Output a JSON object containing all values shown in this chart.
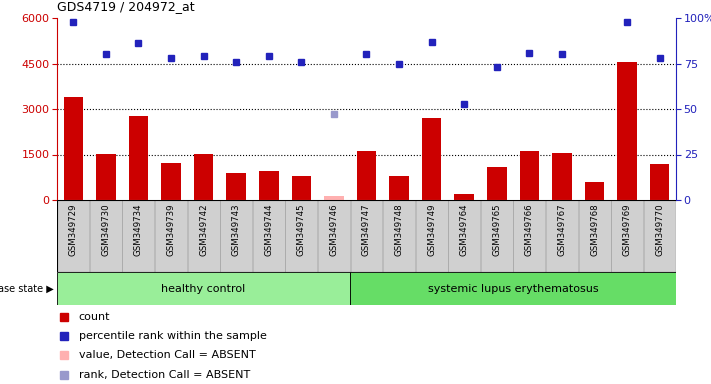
{
  "title": "GDS4719 / 204972_at",
  "samples": [
    "GSM349729",
    "GSM349730",
    "GSM349734",
    "GSM349739",
    "GSM349742",
    "GSM349743",
    "GSM349744",
    "GSM349745",
    "GSM349746",
    "GSM349747",
    "GSM349748",
    "GSM349749",
    "GSM349764",
    "GSM349765",
    "GSM349766",
    "GSM349767",
    "GSM349768",
    "GSM349769",
    "GSM349770"
  ],
  "count_values": [
    3400,
    1530,
    2780,
    1230,
    1510,
    900,
    960,
    790,
    130,
    1600,
    790,
    2700,
    210,
    1080,
    1600,
    1540,
    600,
    4550,
    1200
  ],
  "percentile_values": [
    98,
    80,
    86,
    78,
    79,
    76,
    79,
    76,
    null,
    80,
    75,
    87,
    53,
    73,
    81,
    80,
    null,
    98,
    78
  ],
  "absent_bar_idx": 8,
  "absent_dot_idx": 8,
  "absent_value": 130,
  "absent_rank_pct": 47,
  "healthy_control_count": 9,
  "ylim_left": [
    0,
    6000
  ],
  "ylim_right": [
    0,
    100
  ],
  "yticks_left": [
    0,
    1500,
    3000,
    4500,
    6000
  ],
  "yticks_right": [
    0,
    25,
    50,
    75,
    100
  ],
  "bar_color": "#cc0000",
  "absent_bar_color": "#ffb0b0",
  "dot_color": "#2222bb",
  "absent_dot_color": "#9999cc",
  "grid_color": "#aaaaaa",
  "axes_bg": "#ffffff",
  "sample_box_color": "#d0d0d0",
  "healthy_color": "#99ee99",
  "lupus_color": "#66dd66",
  "legend_items": [
    {
      "label": "count",
      "color": "#cc0000"
    },
    {
      "label": "percentile rank within the sample",
      "color": "#2222bb"
    },
    {
      "label": "value, Detection Call = ABSENT",
      "color": "#ffb0b0"
    },
    {
      "label": "rank, Detection Call = ABSENT",
      "color": "#9999cc"
    }
  ],
  "disease_state_label": "disease state",
  "group1_label": "healthy control",
  "group2_label": "systemic lupus erythematosus"
}
